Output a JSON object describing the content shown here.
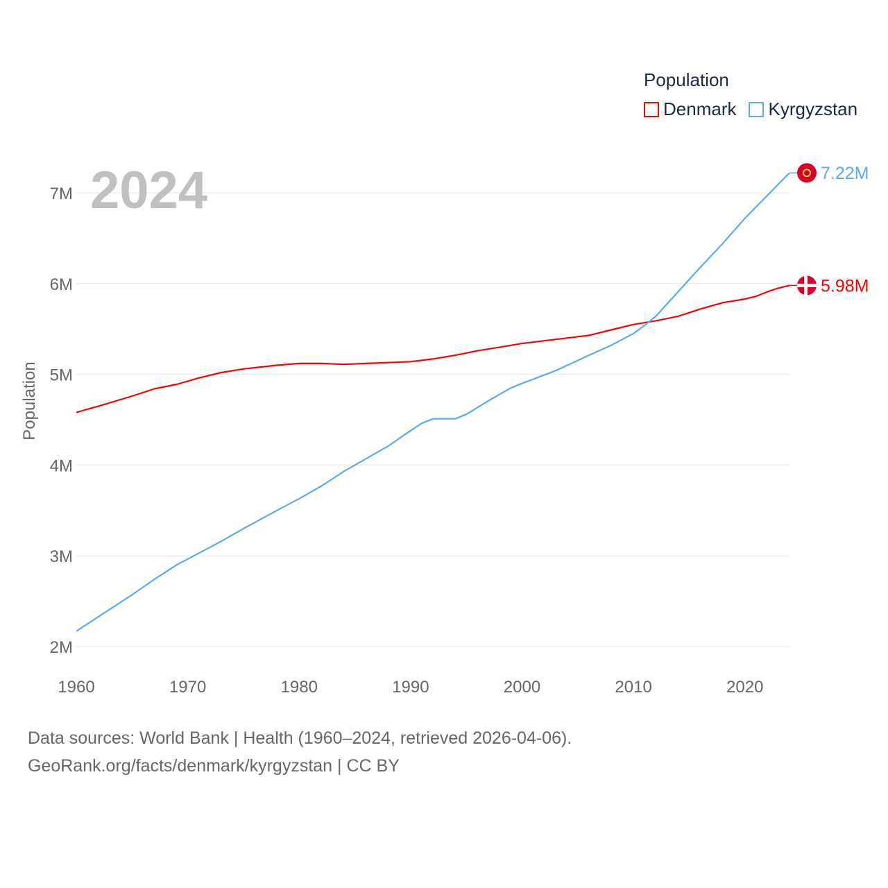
{
  "chart_data": {
    "type": "line",
    "year_label": "2024",
    "ylabel": "Population",
    "xlabel": "",
    "xlim": [
      1960,
      2024
    ],
    "ylim": [
      2000000,
      7000000
    ],
    "x_ticks": [
      "1960",
      "1970",
      "1980",
      "1990",
      "2000",
      "2010",
      "2020"
    ],
    "x_tick_values": [
      1960,
      1970,
      1980,
      1990,
      2000,
      2010,
      2020
    ],
    "y_ticks": [
      "2M",
      "3M",
      "4M",
      "5M",
      "6M",
      "7M"
    ],
    "y_tick_values": [
      2000000,
      3000000,
      4000000,
      5000000,
      6000000,
      7000000
    ],
    "grid": true,
    "legend": {
      "title": "Population",
      "placement": "top-right"
    },
    "series": [
      {
        "name": "Denmark",
        "color": "#ff0000",
        "end_label": "5.98M",
        "x": [
          1960,
          1962,
          1965,
          1967,
          1969,
          1971,
          1973,
          1975,
          1978,
          1980,
          1982,
          1984,
          1986,
          1988,
          1990,
          1992,
          1994,
          1996,
          1998,
          2000,
          2002,
          2004,
          2006,
          2008,
          2010,
          2012,
          2014,
          2016,
          2018,
          2020,
          2021,
          2022,
          2023,
          2024
        ],
        "values": [
          4580000,
          4650000,
          4760000,
          4840000,
          4890000,
          4960000,
          5020000,
          5060000,
          5100000,
          5120000,
          5120000,
          5110000,
          5120000,
          5130000,
          5140000,
          5170000,
          5210000,
          5260000,
          5300000,
          5340000,
          5370000,
          5400000,
          5430000,
          5490000,
          5550000,
          5590000,
          5640000,
          5720000,
          5790000,
          5830000,
          5860000,
          5910000,
          5950000,
          5980000
        ]
      },
      {
        "name": "Kyrgyzstan",
        "color": "#5ea8ee",
        "end_label": "7.22M",
        "x": [
          1960,
          1962,
          1965,
          1967,
          1969,
          1971,
          1973,
          1975,
          1978,
          1980,
          1982,
          1984,
          1986,
          1988,
          1990,
          1991,
          1992,
          1993,
          1994,
          1995,
          1997,
          1999,
          2000,
          2003,
          2006,
          2008,
          2010,
          2011,
          2012,
          2014,
          2016,
          2018,
          2020,
          2022,
          2024
        ],
        "values": [
          2170000,
          2330000,
          2570000,
          2740000,
          2900000,
          3030000,
          3160000,
          3300000,
          3500000,
          3630000,
          3770000,
          3930000,
          4070000,
          4210000,
          4380000,
          4460000,
          4510000,
          4510000,
          4510000,
          4560000,
          4710000,
          4850000,
          4900000,
          5040000,
          5210000,
          5320000,
          5450000,
          5540000,
          5640000,
          5910000,
          6180000,
          6440000,
          6720000,
          6970000,
          7220000
        ]
      }
    ]
  },
  "footer": {
    "line1": "Data sources: World Bank | Health (1960–2024, retrieved 2026-04-06).",
    "line2": "GeoRank.org/facts/denmark/kyrgyzstan | CC BY"
  }
}
